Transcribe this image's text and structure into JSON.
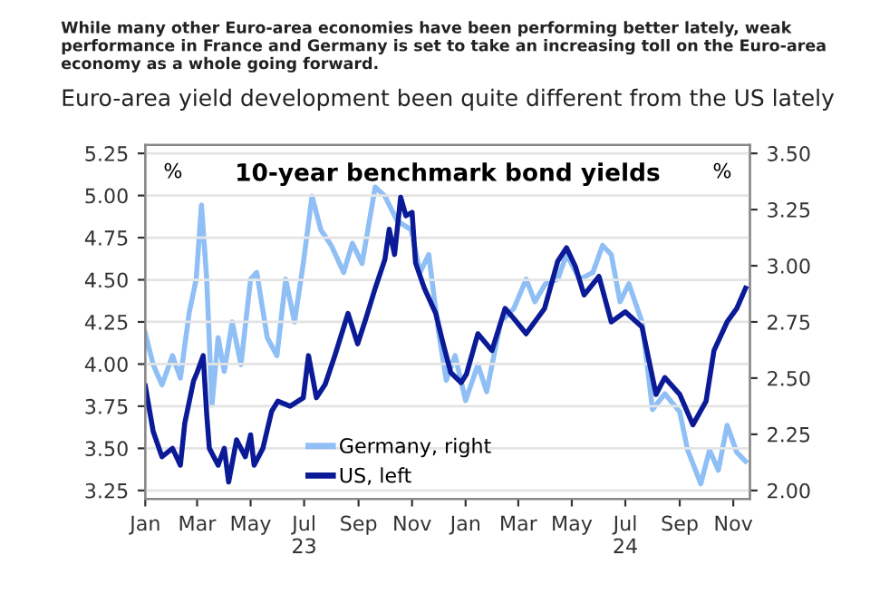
{
  "chart_data": {
    "type": "line",
    "title": "10-year benchmark bond yields",
    "subtitle": "Euro-area yield development been quite different from the US lately",
    "annotations": [
      "While many other Euro-area economies have been performing better lately, weak performance in France and Germany is set to take an increasing toll on the Euro-area economy as a whole going forward.",
      "%",
      "%"
    ],
    "xlim": [
      "2023-01-01",
      "2024-11-20"
    ],
    "xticks": [
      {
        "value": "2023-01-01",
        "label": "Jan"
      },
      {
        "value": "2023-03-01",
        "label": "Mar"
      },
      {
        "value": "2023-05-01",
        "label": "May"
      },
      {
        "value": "2023-07-01",
        "label": "Jul\n23"
      },
      {
        "value": "2023-09-01",
        "label": "Sep"
      },
      {
        "value": "2023-11-01",
        "label": "Nov"
      },
      {
        "value": "2024-01-01",
        "label": "Jan"
      },
      {
        "value": "2024-03-01",
        "label": "Mar"
      },
      {
        "value": "2024-05-01",
        "label": "May"
      },
      {
        "value": "2024-07-01",
        "label": "Jul\n24"
      },
      {
        "value": "2024-09-01",
        "label": "Sep"
      },
      {
        "value": "2024-11-01",
        "label": "Nov"
      }
    ],
    "ylim": [
      3.2,
      5.3
    ],
    "yticks": [
      {
        "value": 3.25,
        "label": "3.25"
      },
      {
        "value": 3.5,
        "label": "3.50"
      },
      {
        "value": 3.75,
        "label": "3.75"
      },
      {
        "value": 4.0,
        "label": "4.00"
      },
      {
        "value": 4.25,
        "label": "4.25"
      },
      {
        "value": 4.5,
        "label": "4.50"
      },
      {
        "value": 4.75,
        "label": "4.75"
      },
      {
        "value": 5.0,
        "label": "5.00"
      },
      {
        "value": 5.25,
        "label": "5.25"
      }
    ],
    "y2lim": [
      1.9625,
      3.5375
    ],
    "y2ticks": [
      {
        "value": 2.0,
        "label": "2.00"
      },
      {
        "value": 2.25,
        "label": "2.25"
      },
      {
        "value": 2.5,
        "label": "2.50"
      },
      {
        "value": 2.75,
        "label": "2.75"
      },
      {
        "value": 3.0,
        "label": "3.00"
      },
      {
        "value": 3.25,
        "label": "3.25"
      },
      {
        "value": 3.5,
        "label": "3.50"
      }
    ],
    "grid": "y",
    "legend": "bottom left",
    "marker": "none",
    "line_style": "solid",
    "series": [
      {
        "name": "Germany, right",
        "color": "#8fbff5",
        "axis": "y2",
        "x": [
          "2023-01-01",
          "2023-01-10",
          "2023-01-20",
          "2023-02-01",
          "2023-02-10",
          "2023-02-20",
          "2023-02-28",
          "2023-03-06",
          "2023-03-12",
          "2023-03-18",
          "2023-03-25",
          "2023-04-01",
          "2023-04-10",
          "2023-04-20",
          "2023-05-01",
          "2023-05-08",
          "2023-05-20",
          "2023-05-31",
          "2023-06-10",
          "2023-06-20",
          "2023-06-30",
          "2023-07-10",
          "2023-07-20",
          "2023-08-01",
          "2023-08-15",
          "2023-08-25",
          "2023-09-05",
          "2023-09-20",
          "2023-10-01",
          "2023-10-15",
          "2023-10-31",
          "2023-11-10",
          "2023-11-20",
          "2023-12-01",
          "2023-12-10",
          "2023-12-20",
          "2024-01-01",
          "2024-01-15",
          "2024-01-25",
          "2024-02-10",
          "2024-02-25",
          "2024-03-10",
          "2024-03-20",
          "2024-04-01",
          "2024-04-15",
          "2024-04-25",
          "2024-05-10",
          "2024-05-25",
          "2024-06-05",
          "2024-06-15",
          "2024-06-25",
          "2024-07-05",
          "2024-07-20",
          "2024-08-01",
          "2024-08-15",
          "2024-09-01",
          "2024-09-10",
          "2024-09-25",
          "2024-10-05",
          "2024-10-15",
          "2024-10-25",
          "2024-11-05",
          "2024-11-15"
        ],
        "values": [
          2.7,
          2.56,
          2.47,
          2.6,
          2.5,
          2.79,
          2.94,
          3.27,
          2.94,
          2.38,
          2.68,
          2.53,
          2.75,
          2.56,
          2.94,
          2.97,
          2.68,
          2.6,
          2.94,
          2.75,
          3.01,
          3.31,
          3.16,
          3.09,
          2.97,
          3.1,
          3.01,
          3.35,
          3.31,
          3.2,
          3.16,
          2.97,
          3.05,
          2.71,
          2.49,
          2.6,
          2.4,
          2.56,
          2.44,
          2.75,
          2.81,
          2.94,
          2.84,
          2.92,
          2.94,
          3.05,
          2.94,
          2.97,
          3.09,
          3.05,
          2.84,
          2.92,
          2.75,
          2.36,
          2.43,
          2.35,
          2.18,
          2.03,
          2.18,
          2.09,
          2.29,
          2.17,
          2.13
        ]
      },
      {
        "name": "US, left",
        "color": "#0b1a96",
        "x": [
          "2023-01-01",
          "2023-01-10",
          "2023-01-20",
          "2023-02-01",
          "2023-02-10",
          "2023-02-15",
          "2023-02-25",
          "2023-03-01",
          "2023-03-08",
          "2023-03-12",
          "2023-03-15",
          "2023-03-20",
          "2023-03-25",
          "2023-04-01",
          "2023-04-06",
          "2023-04-15",
          "2023-04-25",
          "2023-05-01",
          "2023-05-05",
          "2023-05-15",
          "2023-05-25",
          "2023-06-01",
          "2023-06-15",
          "2023-06-30",
          "2023-07-06",
          "2023-07-15",
          "2023-07-25",
          "2023-08-05",
          "2023-08-20",
          "2023-08-31",
          "2023-09-10",
          "2023-09-20",
          "2023-10-01",
          "2023-10-06",
          "2023-10-12",
          "2023-10-19",
          "2023-10-25",
          "2023-11-01",
          "2023-11-05",
          "2023-11-15",
          "2023-11-28",
          "2023-12-05",
          "2023-12-15",
          "2023-12-27",
          "2024-01-02",
          "2024-01-15",
          "2024-01-31",
          "2024-02-15",
          "2024-02-25",
          "2024-03-10",
          "2024-03-31",
          "2024-04-15",
          "2024-04-25",
          "2024-05-05",
          "2024-05-15",
          "2024-06-01",
          "2024-06-15",
          "2024-07-01",
          "2024-07-20",
          "2024-08-05",
          "2024-08-15",
          "2024-09-01",
          "2024-09-16",
          "2024-10-01",
          "2024-10-10",
          "2024-10-25",
          "2024-11-05",
          "2024-11-15"
        ],
        "values": [
          3.87,
          3.6,
          3.45,
          3.5,
          3.4,
          3.65,
          3.9,
          3.95,
          4.05,
          3.7,
          3.5,
          3.45,
          3.4,
          3.5,
          3.3,
          3.55,
          3.45,
          3.58,
          3.4,
          3.5,
          3.72,
          3.78,
          3.75,
          3.8,
          4.05,
          3.8,
          3.88,
          4.05,
          4.3,
          4.12,
          4.28,
          4.45,
          4.62,
          4.8,
          4.65,
          4.99,
          4.88,
          4.9,
          4.6,
          4.45,
          4.3,
          4.15,
          3.95,
          3.89,
          3.94,
          4.18,
          4.08,
          4.33,
          4.27,
          4.18,
          4.33,
          4.61,
          4.69,
          4.58,
          4.41,
          4.52,
          4.25,
          4.31,
          4.22,
          3.82,
          3.92,
          3.82,
          3.64,
          3.78,
          4.08,
          4.25,
          4.33,
          4.45
        ]
      }
    ]
  }
}
